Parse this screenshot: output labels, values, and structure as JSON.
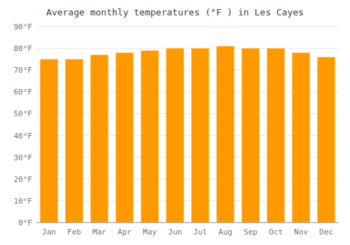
{
  "chart_data": {
    "type": "bar",
    "title": "Average monthly temperatures (°F ) in Les Cayes",
    "categories": [
      "Jan",
      "Feb",
      "Mar",
      "Apr",
      "May",
      "Jun",
      "Jul",
      "Aug",
      "Sep",
      "Oct",
      "Nov",
      "Dec"
    ],
    "values": [
      75,
      75,
      77,
      78,
      79,
      80,
      80,
      81,
      80,
      80,
      78,
      76
    ],
    "color": "#FF9900",
    "ylim": [
      0,
      90
    ],
    "yticks": [
      {
        "value": 0,
        "label": "0°F"
      },
      {
        "value": 10,
        "label": "10°F"
      },
      {
        "value": 20,
        "label": "20°F"
      },
      {
        "value": 30,
        "label": "30°F"
      },
      {
        "value": 40,
        "label": "40°F"
      },
      {
        "value": 50,
        "label": "50°F"
      },
      {
        "value": 60,
        "label": "60°F"
      },
      {
        "value": 70,
        "label": "70°F"
      },
      {
        "value": 80,
        "label": "80°F"
      },
      {
        "value": 90,
        "label": "90°F"
      }
    ],
    "grid": true
  }
}
